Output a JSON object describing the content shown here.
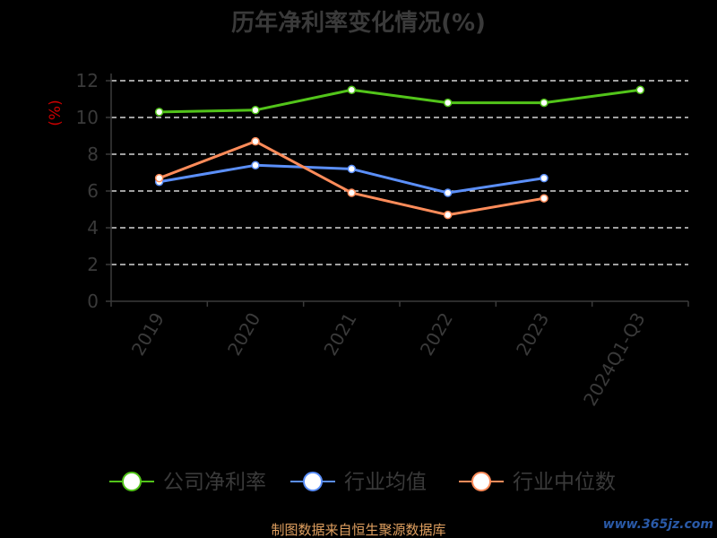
{
  "chart_data": {
    "type": "line",
    "title": "历年净利率变化情况(%)",
    "ylabel": "(%)",
    "xlabel": "",
    "categories": [
      "2019",
      "2020",
      "2021",
      "2022",
      "2023",
      "2024Q1-Q3"
    ],
    "ylim": [
      0,
      12
    ],
    "yticks": [
      0,
      2,
      4,
      6,
      8,
      10,
      12
    ],
    "grid": "horizontal dashed",
    "legend_position": "bottom",
    "series": [
      {
        "name": "公司净利率",
        "color": "#52c41a",
        "values": [
          10.3,
          10.4,
          11.5,
          10.8,
          10.8,
          11.5
        ]
      },
      {
        "name": "行业均值",
        "color": "#5b8ff9",
        "values": [
          6.5,
          7.4,
          7.2,
          5.9,
          6.7,
          null
        ]
      },
      {
        "name": "行业中位数",
        "color": "#ff8c5a",
        "values": [
          6.7,
          8.7,
          5.9,
          4.7,
          5.6,
          null
        ]
      }
    ]
  },
  "footer": {
    "source": "制图数据来自恒生聚源数据库",
    "watermark": "www.365jz.com"
  }
}
